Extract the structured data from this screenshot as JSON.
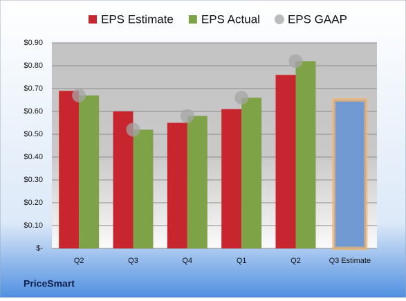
{
  "chart_data": {
    "type": "bar",
    "brand": "PriceSmart",
    "categories": [
      "Q2",
      "Q3",
      "Q4",
      "Q1",
      "Q2",
      "Q3 Estimate"
    ],
    "series": [
      {
        "name": "EPS Estimate",
        "color": "#c8262e",
        "values": [
          0.69,
          0.6,
          0.55,
          0.61,
          0.76,
          null
        ]
      },
      {
        "name": "EPS Actual",
        "color": "#7ea346",
        "values": [
          0.67,
          0.52,
          0.58,
          0.66,
          0.82,
          null
        ]
      },
      {
        "name": "EPS GAAP",
        "color": "#a6a6a6",
        "kind": "marker",
        "values": [
          0.67,
          0.52,
          0.58,
          0.66,
          0.82,
          null
        ]
      }
    ],
    "forecast": {
      "value": 0.65,
      "color": "#7199d2",
      "glow": "#f5b56a"
    },
    "ylim": [
      0,
      0.9
    ],
    "yticks": [
      {
        "value": 0,
        "label": "$-"
      },
      {
        "value": 0.1,
        "label": "$0.10"
      },
      {
        "value": 0.2,
        "label": "$0.20"
      },
      {
        "value": 0.3,
        "label": "$0.30"
      },
      {
        "value": 0.4,
        "label": "$0.40"
      },
      {
        "value": 0.5,
        "label": "$0.50"
      },
      {
        "value": 0.6,
        "label": "$0.60"
      },
      {
        "value": 0.7,
        "label": "$0.70"
      },
      {
        "value": 0.8,
        "label": "$0.80"
      },
      {
        "value": 0.9,
        "label": "$0.90"
      }
    ],
    "grid": true
  }
}
